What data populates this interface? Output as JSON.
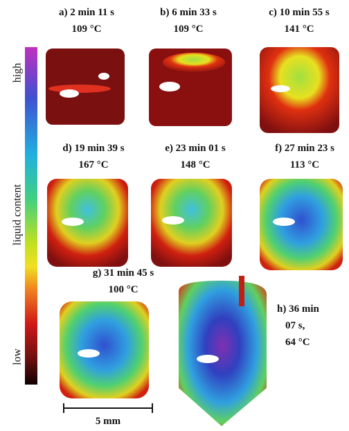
{
  "colorbar": {
    "top": "high",
    "middle": "liquid content",
    "bottom": "low"
  },
  "panels": [
    {
      "lines": [
        "a) 2 min 11 s",
        "109 °C"
      ]
    },
    {
      "lines": [
        "b) 6 min 33 s",
        "109 °C"
      ]
    },
    {
      "lines": [
        "c) 10 min 55 s",
        "141 °C"
      ]
    },
    {
      "lines": [
        "d) 19 min 39 s",
        "167 °C"
      ]
    },
    {
      "lines": [
        "e) 23 min 01 s",
        "148 °C"
      ]
    },
    {
      "lines": [
        "f) 27 min 23 s",
        "113 °C"
      ]
    },
    {
      "lines": [
        "g) 31 min 45 s",
        "100 °C"
      ]
    },
    {
      "lines": [
        "h) 36 min",
        "07 s,",
        "64 °C"
      ]
    }
  ],
  "scale_bar": "5 mm"
}
